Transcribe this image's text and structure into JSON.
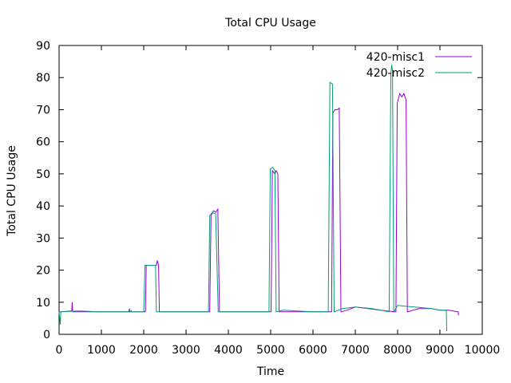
{
  "chart_data": {
    "type": "line",
    "title": "Total CPU Usage",
    "xlabel": "Time",
    "ylabel": "Total CPU Usage",
    "xlim": [
      0,
      10000
    ],
    "ylim": [
      0,
      90
    ],
    "xticks": [
      0,
      1000,
      2000,
      3000,
      4000,
      5000,
      6000,
      7000,
      8000,
      9000,
      10000
    ],
    "yticks": [
      0,
      10,
      20,
      30,
      40,
      50,
      60,
      70,
      80,
      90
    ],
    "grid": false,
    "legend_position": "top-right",
    "series": [
      {
        "name": "420-misc1",
        "color": "#9400d3",
        "points": [
          [
            0,
            7
          ],
          [
            50,
            7
          ],
          [
            300,
            7.3
          ],
          [
            310,
            10
          ],
          [
            320,
            7
          ],
          [
            900,
            7
          ],
          [
            1650,
            7
          ],
          [
            1660,
            8
          ],
          [
            1670,
            7
          ],
          [
            2040,
            7
          ],
          [
            2060,
            21.5
          ],
          [
            2300,
            21.5
          ],
          [
            2320,
            23
          ],
          [
            2350,
            21.5
          ],
          [
            2370,
            7
          ],
          [
            3560,
            7
          ],
          [
            3590,
            37
          ],
          [
            3650,
            38.5
          ],
          [
            3700,
            38
          ],
          [
            3750,
            39
          ],
          [
            3790,
            7
          ],
          [
            4900,
            7
          ],
          [
            5010,
            7
          ],
          [
            5040,
            51
          ],
          [
            5100,
            50
          ],
          [
            5130,
            51
          ],
          [
            5170,
            50
          ],
          [
            5200,
            7
          ],
          [
            6400,
            7
          ],
          [
            6440,
            7
          ],
          [
            6470,
            69
          ],
          [
            6520,
            70
          ],
          [
            6580,
            70
          ],
          [
            6620,
            70.5
          ],
          [
            6660,
            7
          ],
          [
            6800,
            7.5
          ],
          [
            7000,
            8.5
          ],
          [
            7300,
            8
          ],
          [
            7600,
            7.5
          ],
          [
            7930,
            7
          ],
          [
            7960,
            7
          ],
          [
            7990,
            72
          ],
          [
            8050,
            75
          ],
          [
            8100,
            74
          ],
          [
            8150,
            75
          ],
          [
            8200,
            73
          ],
          [
            8230,
            7
          ],
          [
            8500,
            8
          ],
          [
            8800,
            8
          ],
          [
            9000,
            7.5
          ],
          [
            9200,
            7.5
          ],
          [
            9430,
            7
          ],
          [
            9440,
            6
          ]
        ]
      },
      {
        "name": "420-misc2",
        "color": "#009e73",
        "points": [
          [
            0,
            7
          ],
          [
            30,
            3
          ],
          [
            40,
            7
          ],
          [
            500,
            7.3
          ],
          [
            900,
            7
          ],
          [
            1690,
            7
          ],
          [
            1700,
            7.5
          ],
          [
            1710,
            7
          ],
          [
            2000,
            7
          ],
          [
            2030,
            21.5
          ],
          [
            2280,
            21.5
          ],
          [
            2300,
            7
          ],
          [
            3530,
            7
          ],
          [
            3560,
            37
          ],
          [
            3620,
            38
          ],
          [
            3700,
            37.5
          ],
          [
            3760,
            7
          ],
          [
            4960,
            7
          ],
          [
            4990,
            51.5
          ],
          [
            5050,
            52
          ],
          [
            5100,
            51
          ],
          [
            5130,
            7
          ],
          [
            5300,
            7.5
          ],
          [
            6000,
            7
          ],
          [
            6360,
            7
          ],
          [
            6400,
            78.5
          ],
          [
            6460,
            78
          ],
          [
            6500,
            7
          ],
          [
            6700,
            8
          ],
          [
            7000,
            8.5
          ],
          [
            7400,
            8
          ],
          [
            7800,
            7
          ],
          [
            7840,
            81
          ],
          [
            7860,
            84
          ],
          [
            7880,
            82
          ],
          [
            7910,
            7
          ],
          [
            8000,
            9
          ],
          [
            8400,
            8.5
          ],
          [
            8800,
            8
          ],
          [
            9000,
            7.5
          ],
          [
            9150,
            7.5
          ],
          [
            9160,
            1
          ]
        ]
      }
    ]
  }
}
